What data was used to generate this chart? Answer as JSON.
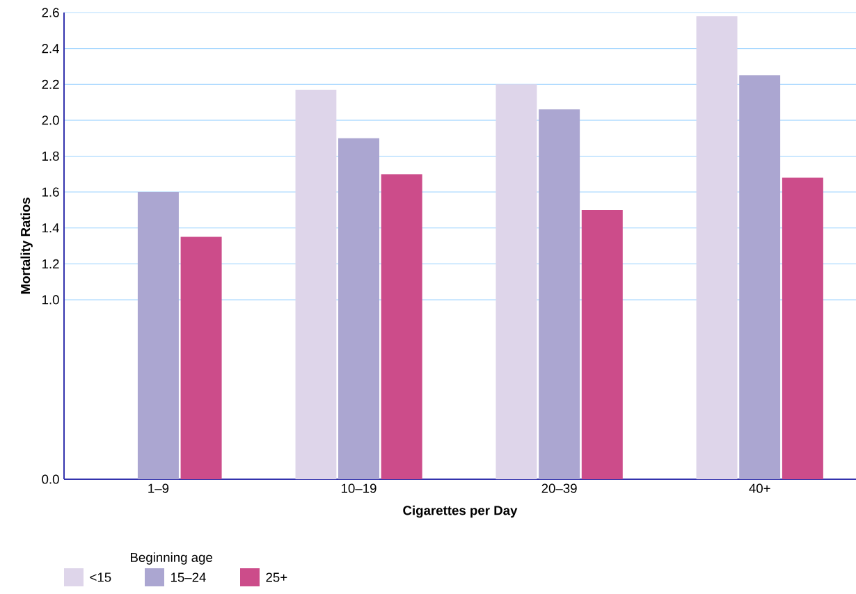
{
  "chart_data": {
    "type": "bar",
    "xlabel": "Cigarettes per Day",
    "ylabel": "Mortality Ratios",
    "legend_title": "Beginning age",
    "categories": [
      "1–9",
      "10–19",
      "20–39",
      "40+"
    ],
    "series": [
      {
        "name": "<15",
        "color": "#ded5ea",
        "values": [
          null,
          2.17,
          2.2,
          2.58
        ]
      },
      {
        "name": "15–24",
        "color": "#aba6d1",
        "values": [
          1.6,
          1.9,
          2.06,
          2.25
        ]
      },
      {
        "name": "25+",
        "color": "#cc4c8a",
        "values": [
          1.35,
          1.7,
          1.5,
          1.68
        ]
      }
    ],
    "ylim": [
      0.0,
      2.6
    ],
    "yticks": [
      {
        "value": 0.0,
        "label": "0.0"
      },
      {
        "value": 1.0,
        "label": "1.0"
      },
      {
        "value": 1.2,
        "label": "1.2"
      },
      {
        "value": 1.4,
        "label": "1.4"
      },
      {
        "value": 1.6,
        "label": "1.6"
      },
      {
        "value": 1.8,
        "label": "1.8"
      },
      {
        "value": 2.0,
        "label": "2.0"
      },
      {
        "value": 2.2,
        "label": "2.2"
      },
      {
        "value": 2.4,
        "label": "2.4"
      },
      {
        "value": 2.6,
        "label": "2.6"
      }
    ],
    "grid": "y",
    "legend": "bottom left"
  }
}
